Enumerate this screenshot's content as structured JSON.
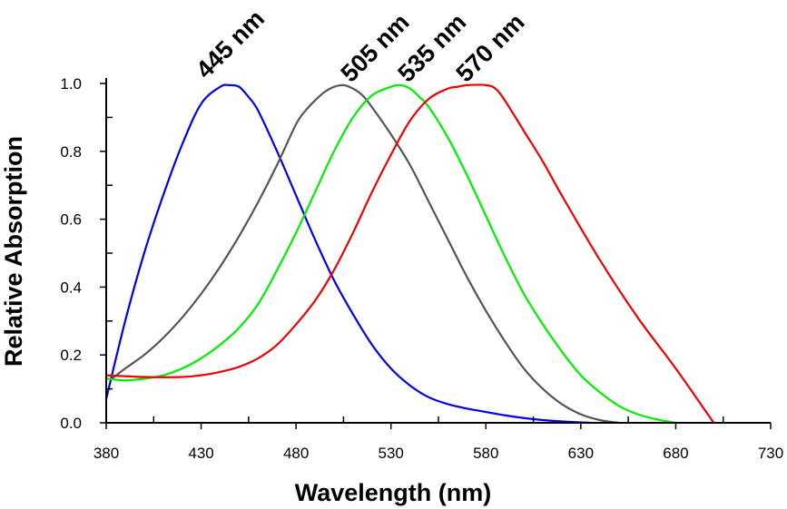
{
  "chart_data": {
    "type": "line",
    "xlabel": "Wavelength (nm)",
    "ylabel": "Relative Absorption",
    "xlim": [
      380,
      730
    ],
    "ylim": [
      0,
      1.0
    ],
    "x_ticks": [
      "380",
      "430",
      "480",
      "530",
      "580",
      "630",
      "680",
      "730"
    ],
    "y_ticks": [
      "0.0",
      "0.2",
      "0.4",
      "0.6",
      "0.8",
      "1.0"
    ],
    "grid": false,
    "series": [
      {
        "color": "#0000ee",
        "peak_label": "445 nm",
        "peak_x": 445,
        "x": [
          380,
          390,
          400,
          410,
          420,
          430,
          440,
          445,
          450,
          455,
          460,
          470,
          480,
          490,
          500,
          510,
          520,
          530,
          540,
          550,
          560,
          570,
          580,
          590,
          600,
          610,
          620,
          635
        ],
        "y": [
          0.07,
          0.3,
          0.5,
          0.67,
          0.82,
          0.94,
          0.99,
          0.995,
          0.99,
          0.96,
          0.92,
          0.8,
          0.67,
          0.54,
          0.42,
          0.32,
          0.23,
          0.16,
          0.11,
          0.075,
          0.055,
          0.042,
          0.032,
          0.022,
          0.014,
          0.008,
          0.004,
          0.0
        ]
      },
      {
        "color": "#555555",
        "peak_label": "505 nm",
        "peak_x": 505,
        "x": [
          383,
          390,
          400,
          410,
          420,
          430,
          440,
          450,
          460,
          470,
          480,
          485,
          490,
          495,
          500,
          505,
          510,
          515,
          520,
          530,
          540,
          550,
          560,
          570,
          580,
          590,
          600,
          610,
          620,
          630,
          640,
          650
        ],
        "y": [
          0.13,
          0.16,
          0.2,
          0.25,
          0.31,
          0.38,
          0.46,
          0.55,
          0.65,
          0.76,
          0.88,
          0.92,
          0.95,
          0.975,
          0.99,
          0.995,
          0.985,
          0.965,
          0.93,
          0.85,
          0.76,
          0.65,
          0.54,
          0.43,
          0.33,
          0.24,
          0.16,
          0.1,
          0.055,
          0.025,
          0.008,
          0.0
        ]
      },
      {
        "color": "#00ee00",
        "peak_label": "535 nm",
        "peak_x": 535,
        "x": [
          380,
          390,
          400,
          410,
          420,
          430,
          440,
          450,
          460,
          470,
          480,
          490,
          500,
          510,
          520,
          530,
          535,
          540,
          545,
          550,
          560,
          570,
          580,
          590,
          600,
          610,
          620,
          630,
          640,
          650,
          660,
          670,
          680
        ],
        "y": [
          0.13,
          0.125,
          0.13,
          0.14,
          0.16,
          0.19,
          0.23,
          0.28,
          0.35,
          0.45,
          0.56,
          0.68,
          0.8,
          0.9,
          0.965,
          0.99,
          0.995,
          0.985,
          0.96,
          0.93,
          0.84,
          0.73,
          0.61,
          0.49,
          0.38,
          0.29,
          0.21,
          0.14,
          0.09,
          0.05,
          0.025,
          0.01,
          0.0
        ]
      },
      {
        "color": "#ee0000",
        "peak_label": "570 nm",
        "peak_x": 570,
        "x": [
          380,
          400,
          420,
          430,
          440,
          450,
          460,
          470,
          480,
          490,
          500,
          510,
          520,
          530,
          540,
          550,
          560,
          565,
          570,
          580,
          585,
          590,
          600,
          610,
          620,
          640,
          660,
          680,
          700
        ],
        "y": [
          0.14,
          0.135,
          0.135,
          0.14,
          0.15,
          0.165,
          0.19,
          0.23,
          0.29,
          0.36,
          0.45,
          0.56,
          0.68,
          0.79,
          0.89,
          0.955,
          0.985,
          0.99,
          0.995,
          0.995,
          0.985,
          0.95,
          0.86,
          0.77,
          0.67,
          0.48,
          0.31,
          0.16,
          0.0
        ]
      }
    ]
  }
}
